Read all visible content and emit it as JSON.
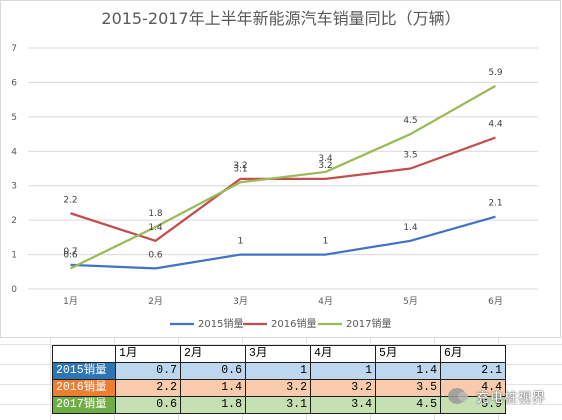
{
  "chart_data": {
    "type": "line",
    "title": "2015-2017年上半年新能源汽车销量同比（万辆）",
    "categories": [
      "1月",
      "2月",
      "3月",
      "4月",
      "5月",
      "6月"
    ],
    "ylim": [
      0,
      7
    ],
    "yticks": [
      "0",
      "1",
      "2",
      "3",
      "4",
      "5",
      "6",
      "7"
    ],
    "grid": true,
    "legend_position": "bottom",
    "series": [
      {
        "name": "2015销量",
        "color": "#4472c4",
        "values": [
          0.7,
          0.6,
          1,
          1,
          1.4,
          2.1
        ]
      },
      {
        "name": "2016销量",
        "color": "#c0504d",
        "values": [
          2.2,
          1.4,
          3.2,
          3.2,
          3.5,
          4.4
        ]
      },
      {
        "name": "2017销量",
        "color": "#9bbb59",
        "values": [
          0.6,
          1.8,
          3.1,
          3.4,
          4.5,
          5.9
        ]
      }
    ]
  },
  "table": {
    "headers": [
      "1月",
      "2月",
      "3月",
      "4月",
      "5月",
      "6月"
    ],
    "rows": [
      {
        "label": "2015销量",
        "values": [
          "0.7",
          "0.6",
          "1",
          "1",
          "1.4",
          "2.1"
        ]
      },
      {
        "label": "2016销量",
        "values": [
          "2.2",
          "1.4",
          "3.2",
          "3.2",
          "3.5",
          "4.4"
        ]
      },
      {
        "label": "2017销量",
        "values": [
          "0.6",
          "1.8",
          "3.1",
          "3.4",
          "4.5",
          "5.9"
        ]
      }
    ]
  },
  "watermark": {
    "text": "充电桩视界",
    "icon": "wechat-icon"
  }
}
